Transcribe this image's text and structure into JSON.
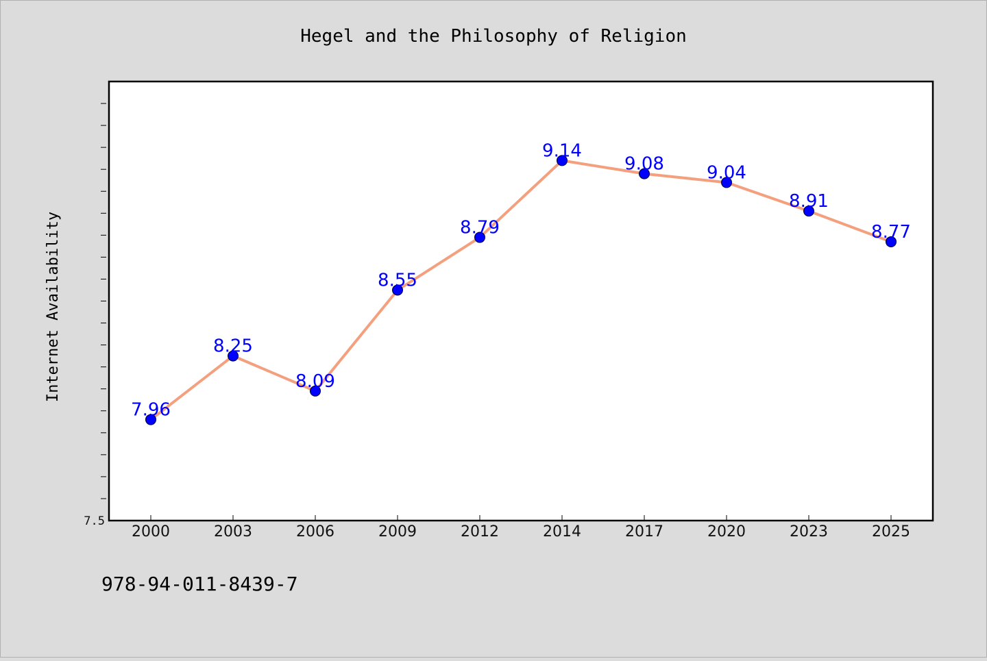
{
  "colors": {
    "background": "#dcdcdc",
    "plot_background": "#ffffff",
    "line": "#f4a07e",
    "marker": "#0000ff",
    "data_label": "#0000ff"
  },
  "footer": {
    "isbn": "978-94-011-8439-7"
  },
  "chart_data": {
    "type": "line",
    "title": "Hegel and the Philosophy of Religion",
    "xlabel": "",
    "ylabel": "Internet Availability",
    "categories": [
      "2000",
      "2003",
      "2006",
      "2009",
      "2012",
      "2014",
      "2017",
      "2020",
      "2023",
      "2025"
    ],
    "series": [
      {
        "values": [
          7.96,
          8.25,
          8.09,
          8.55,
          8.79,
          9.14,
          9.08,
          9.04,
          8.91,
          8.77
        ],
        "data_labels": [
          "7.96",
          "8.25",
          "8.09",
          "8.55",
          "8.79",
          "9.14",
          "9.08",
          "9.04",
          "8.91",
          "8.77"
        ]
      }
    ],
    "ylim": [
      7.5,
      9.5
    ],
    "yticks": [
      7.5
    ],
    "ytick_labels": [
      "7.5"
    ],
    "grid": false,
    "legend": "none"
  }
}
